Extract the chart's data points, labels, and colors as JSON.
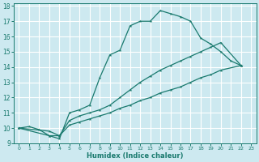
{
  "xlabel": "Humidex (Indice chaleur)",
  "bg_color": "#cde9f0",
  "grid_color": "#ffffff",
  "line_color": "#1a7a6e",
  "xlim": [
    -0.5,
    23.5
  ],
  "ylim": [
    9,
    18.2
  ],
  "xticks": [
    0,
    1,
    2,
    3,
    4,
    5,
    6,
    7,
    8,
    9,
    10,
    11,
    12,
    13,
    14,
    15,
    16,
    17,
    18,
    19,
    20,
    21,
    22,
    23
  ],
  "yticks": [
    9,
    10,
    11,
    12,
    13,
    14,
    15,
    16,
    17,
    18
  ],
  "line1_x": [
    0,
    1,
    2,
    3,
    4,
    5,
    6,
    7,
    8,
    9,
    10,
    11,
    12,
    13,
    14,
    15,
    16,
    17,
    18,
    19,
    20,
    21,
    22
  ],
  "line1_y": [
    10.0,
    10.1,
    9.9,
    9.5,
    9.3,
    11.0,
    11.2,
    11.5,
    13.3,
    14.8,
    15.1,
    16.7,
    17.0,
    17.0,
    17.7,
    17.5,
    17.3,
    17.0,
    15.9,
    15.5,
    15.0,
    14.4,
    14.1
  ],
  "line2_x": [
    0,
    3,
    4,
    5,
    6,
    7,
    8,
    9,
    10,
    11,
    12,
    13,
    14,
    15,
    16,
    17,
    18,
    19,
    20,
    22
  ],
  "line2_y": [
    10.0,
    9.8,
    9.5,
    10.2,
    10.4,
    10.6,
    10.8,
    11.0,
    11.3,
    11.5,
    11.8,
    12.0,
    12.3,
    12.5,
    12.7,
    13.0,
    13.3,
    13.5,
    13.8,
    14.1
  ],
  "line3_x": [
    0,
    3,
    4,
    5,
    6,
    7,
    8,
    9,
    10,
    11,
    12,
    13,
    14,
    15,
    16,
    17,
    18,
    19,
    20,
    22
  ],
  "line3_y": [
    10.0,
    9.5,
    9.5,
    10.5,
    10.8,
    11.0,
    11.2,
    11.5,
    12.0,
    12.5,
    13.0,
    13.4,
    13.8,
    14.1,
    14.4,
    14.7,
    15.0,
    15.3,
    15.6,
    14.1
  ]
}
